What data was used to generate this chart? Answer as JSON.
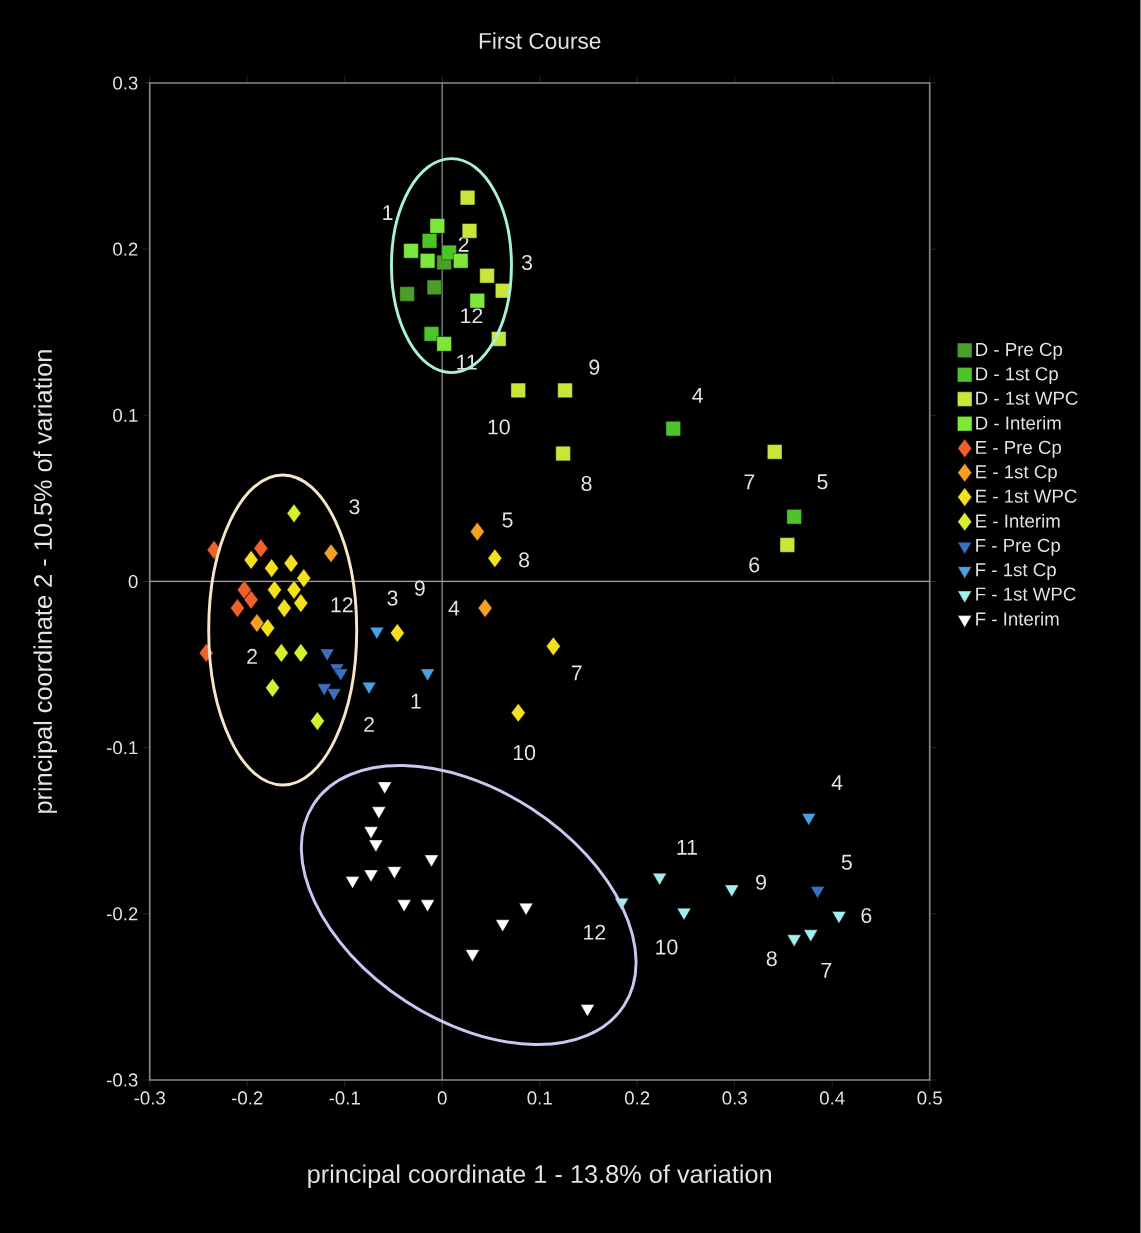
{
  "chart_data": {
    "type": "scatter",
    "title": "First Course",
    "xlabel": "principal coordinate 1 - 13.8% of variation",
    "ylabel": "principal coordinate 2 - 10.5% of variation",
    "xlim": [
      -0.3,
      0.5
    ],
    "ylim": [
      -0.3,
      0.3
    ],
    "xticks": [
      -0.3,
      -0.2,
      -0.1,
      0,
      0.1,
      0.2,
      0.3,
      0.4,
      0.5
    ],
    "yticks": [
      -0.3,
      -0.2,
      -0.1,
      0,
      0.1,
      0.2,
      0.3
    ],
    "legend": "right",
    "ref_lines": [
      {
        "axis": "x",
        "value": 0,
        "color": "#8a8a8a"
      },
      {
        "axis": "y",
        "value": 0,
        "color": "#a0a0a0"
      }
    ],
    "series": [
      {
        "name": "D - Pre Cp",
        "color": "#4a9e2a",
        "marker": "square",
        "x": [
          -0.036,
          -0.024,
          -0.008,
          0.002
        ],
        "values": [
          0.173,
          null,
          0.177,
          0.192
        ]
      },
      {
        "name": "D - 1st Cp",
        "color": "#4cc42a",
        "marker": "square",
        "x": [
          -0.013,
          0.007,
          0.237,
          0.361,
          -0.011
        ],
        "values": [
          0.205,
          0.198,
          0.092,
          0.039,
          0.149
        ]
      },
      {
        "name": "D - 1st WPC",
        "color": "#c8e63a",
        "marker": "square",
        "x": [
          0.026,
          0.028,
          0.046,
          0.062,
          0.058,
          0.078,
          0.126,
          0.124,
          0.341,
          0.354
        ],
        "values": [
          0.231,
          0.211,
          0.184,
          0.175,
          0.146,
          0.115,
          0.115,
          0.077,
          0.078,
          0.022
        ]
      },
      {
        "name": "D - Interim",
        "color": "#7ee83a",
        "marker": "square",
        "x": [
          -0.032,
          -0.015,
          0.019,
          0.002,
          0.036,
          -0.005
        ],
        "values": [
          0.199,
          0.193,
          0.193,
          0.143,
          0.169,
          0.214
        ]
      },
      {
        "name": "E - Pre Cp",
        "color": "#f0602a",
        "marker": "diamond",
        "x": [
          -0.234,
          -0.186,
          -0.203,
          -0.21,
          -0.242,
          -0.196
        ],
        "values": [
          0.019,
          0.02,
          -0.005,
          -0.016,
          -0.043,
          -0.011
        ]
      },
      {
        "name": "E - 1st Cp",
        "color": "#f5a020",
        "marker": "diamond",
        "x": [
          -0.114,
          0.036,
          0.044,
          -0.19
        ],
        "values": [
          0.017,
          0.03,
          -0.016,
          -0.025
        ]
      },
      {
        "name": "E - 1st WPC",
        "color": "#f5e020",
        "marker": "diamond",
        "x": [
          -0.196,
          -0.175,
          -0.155,
          -0.142,
          -0.152,
          -0.172,
          -0.162,
          -0.145,
          -0.179,
          -0.046,
          0.054,
          0.114,
          0.078
        ],
        "values": [
          0.013,
          0.008,
          0.011,
          0.002,
          -0.005,
          -0.005,
          -0.016,
          -0.013,
          -0.028,
          -0.031,
          0.014,
          -0.039,
          -0.079
        ]
      },
      {
        "name": "E - Interim",
        "color": "#d8ef30",
        "marker": "diamond",
        "x": [
          -0.152,
          -0.165,
          -0.145,
          -0.174,
          -0.128
        ],
        "values": [
          0.041,
          -0.043,
          -0.043,
          -0.064,
          -0.084
        ]
      },
      {
        "name": "F - Pre Cp",
        "color": "#3a70c0",
        "marker": "triangle",
        "x": [
          -0.118,
          -0.108,
          -0.121,
          -0.111,
          -0.104,
          0.385
        ],
        "values": [
          -0.043,
          -0.052,
          -0.064,
          -0.067,
          -0.055,
          -0.186
        ]
      },
      {
        "name": "F - 1st Cp",
        "color": "#4aa0e0",
        "marker": "triangle",
        "x": [
          -0.067,
          -0.075,
          -0.015,
          0.376
        ],
        "values": [
          -0.03,
          -0.063,
          -0.055,
          -0.142
        ]
      },
      {
        "name": "F - 1st WPC",
        "color": "#a0f0f0",
        "marker": "triangle",
        "x": [
          0.184,
          0.223,
          0.248,
          0.297,
          0.407,
          0.361,
          0.378
        ],
        "values": [
          -0.193,
          -0.178,
          -0.199,
          -0.185,
          -0.201,
          -0.215,
          -0.212
        ]
      },
      {
        "name": "F - Interim",
        "color": "#ffffff",
        "marker": "triangle",
        "x": [
          -0.059,
          -0.065,
          -0.073,
          -0.068,
          -0.092,
          -0.073,
          -0.049,
          -0.011,
          -0.039,
          -0.015,
          0.031,
          0.062,
          0.086,
          0.149
        ],
        "values": [
          -0.123,
          -0.138,
          -0.15,
          -0.158,
          -0.18,
          -0.176,
          -0.174,
          -0.167,
          -0.194,
          -0.194,
          -0.224,
          -0.206,
          -0.196,
          -0.257
        ]
      }
    ],
    "annotations": [
      "1",
      "2",
      "3",
      "12",
      "11",
      "9",
      "10",
      "8",
      "4",
      "7",
      "5",
      "6",
      "3",
      "12",
      "2",
      "9",
      "4",
      "5",
      "8",
      "7",
      "10",
      "3",
      "2",
      "1",
      "12",
      "11",
      "10",
      "9",
      "4",
      "5",
      "6",
      "8",
      "7"
    ]
  }
}
